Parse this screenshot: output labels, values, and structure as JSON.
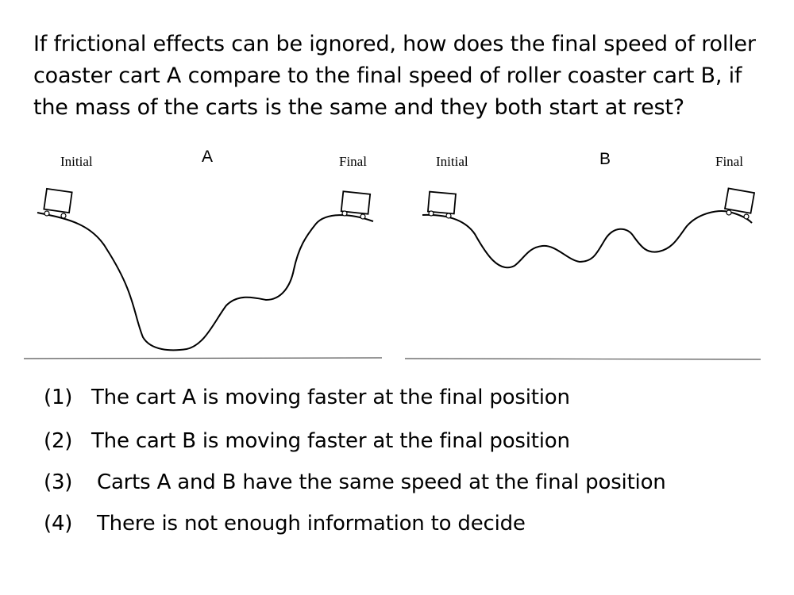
{
  "question": "If frictional effects can be ignored, how does the final speed of roller coaster cart A compare to the final speed of roller coaster cart B, if the mass of the carts is the same and they both start at rest?",
  "diagram_a": {
    "label": "A",
    "initial_label": "Initial",
    "final_label": "Final"
  },
  "diagram_b": {
    "label": "B",
    "initial_label": "Initial",
    "final_label": "Final"
  },
  "options": [
    {
      "number": "(1)",
      "text": "The cart A is moving faster at the final position"
    },
    {
      "number": "(2)",
      "text": "The cart B is moving faster at the final position"
    },
    {
      "number": "(3)",
      "text": "Carts A and B have the same speed at the final position"
    },
    {
      "number": "(4)",
      "text": "There is not enough information to decide"
    }
  ]
}
